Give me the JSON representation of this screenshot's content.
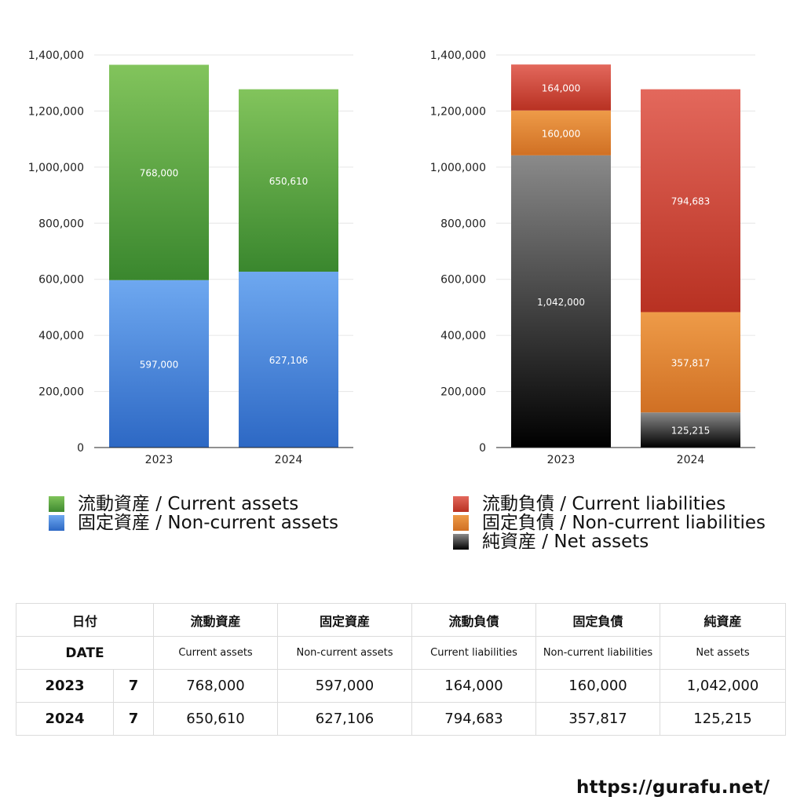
{
  "chart_data": [
    {
      "type": "bar",
      "stacked": true,
      "categories": [
        "2023",
        "2024"
      ],
      "series": [
        {
          "name": "固定資産 / Non-current assets",
          "values": [
            597000,
            627106
          ],
          "labels": [
            "597,000",
            "627,106"
          ],
          "color": "#4a88dc"
        },
        {
          "name": "流動資産 / Current assets",
          "values": [
            768000,
            650610
          ],
          "labels": [
            "768,000",
            "650,610"
          ],
          "color": "#5aa445"
        }
      ],
      "ylim": [
        0,
        1400000
      ],
      "yticks": [
        0,
        200000,
        400000,
        600000,
        800000,
        1000000,
        1200000,
        1400000
      ],
      "ytick_labels": [
        "0",
        "200,000",
        "400,000",
        "600,000",
        "800,000",
        "1,000,000",
        "1,200,000",
        "1,400,000"
      ],
      "grid": true,
      "legend_position": "bottom"
    },
    {
      "type": "bar",
      "stacked": true,
      "categories": [
        "2023",
        "2024"
      ],
      "series": [
        {
          "name": "純資産 / Net assets",
          "values": [
            1042000,
            125215
          ],
          "labels": [
            "1,042,000",
            "125,215"
          ],
          "color": "#333333"
        },
        {
          "name": "固定負債 / Non-current liabilities",
          "values": [
            160000,
            357817
          ],
          "labels": [
            "160,000",
            "357,817"
          ],
          "color": "#e08a38"
        },
        {
          "name": "流動負債 / Current liabilities",
          "values": [
            164000,
            794683
          ],
          "labels": [
            "164,000",
            "794,683"
          ],
          "color": "#d44a3a"
        }
      ],
      "ylim": [
        0,
        1400000
      ],
      "yticks": [
        0,
        200000,
        400000,
        600000,
        800000,
        1000000,
        1200000,
        1400000
      ],
      "ytick_labels": [
        "0",
        "200,000",
        "400,000",
        "600,000",
        "800,000",
        "1,000,000",
        "1,200,000",
        "1,400,000"
      ],
      "grid": true,
      "legend_position": "bottom"
    }
  ],
  "legend_left": [
    {
      "label": "流動資産 / Current assets",
      "color": "#5aa445"
    },
    {
      "label": "固定資産 / Non-current assets",
      "color": "#4a88dc"
    }
  ],
  "legend_right": [
    {
      "label": "流動負債 / Current liabilities",
      "color": "#d44a3a"
    },
    {
      "label": "固定負債 / Non-current liabilities",
      "color": "#e08a38"
    },
    {
      "label": "純資産 / Net assets",
      "color": "#222222"
    }
  ],
  "table": {
    "header_ja": [
      "日付",
      "流動資産",
      "固定資産",
      "流動負債",
      "固定負債",
      "純資産"
    ],
    "header_date": "DATE",
    "header_en": [
      "Current assets",
      "Non-current assets",
      "Current liabilities",
      "Non-current liabilities",
      "Net assets"
    ],
    "rows": [
      {
        "year": "2023",
        "month": "7",
        "values": [
          "768,000",
          "597,000",
          "164,000",
          "160,000",
          "1,042,000"
        ]
      },
      {
        "year": "2024",
        "month": "7",
        "values": [
          "650,610",
          "627,106",
          "794,683",
          "357,817",
          "125,215"
        ]
      }
    ]
  },
  "source_url": "https://gurafu.net/"
}
